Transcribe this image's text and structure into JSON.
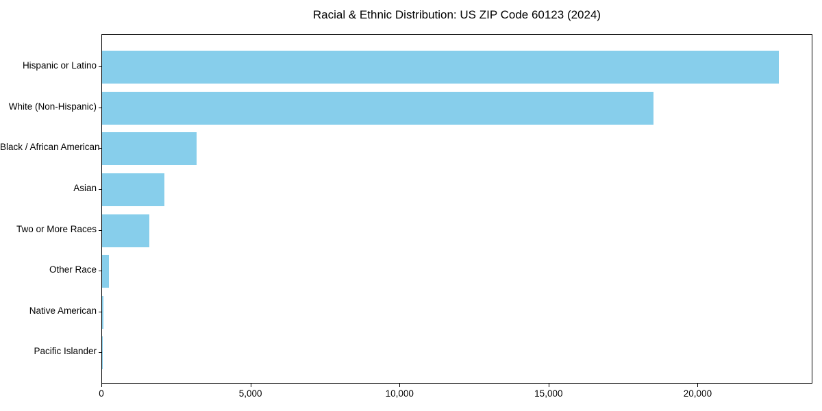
{
  "chart_data": {
    "type": "bar",
    "orientation": "horizontal",
    "title": "Racial & Ethnic Distribution: US ZIP Code 60123 (2024)",
    "categories": [
      "Hispanic or Latino",
      "White (Non-Hispanic)",
      "Black / African American",
      "Asian",
      "Two or More Races",
      "Other Race",
      "Native American",
      "Pacific Islander"
    ],
    "values": [
      22700,
      18500,
      3170,
      2090,
      1580,
      230,
      40,
      12
    ],
    "xlabel": "",
    "ylabel": "",
    "xlim": [
      0,
      23850
    ],
    "x_ticks": [
      0,
      5000,
      10000,
      15000,
      20000
    ],
    "x_tick_labels": [
      "0",
      "5,000",
      "10,000",
      "15,000",
      "20,000"
    ],
    "bar_color": "#87CEEB",
    "frame_color": "#000000",
    "background_color": "#ffffff",
    "grid": false,
    "legend": "none"
  }
}
